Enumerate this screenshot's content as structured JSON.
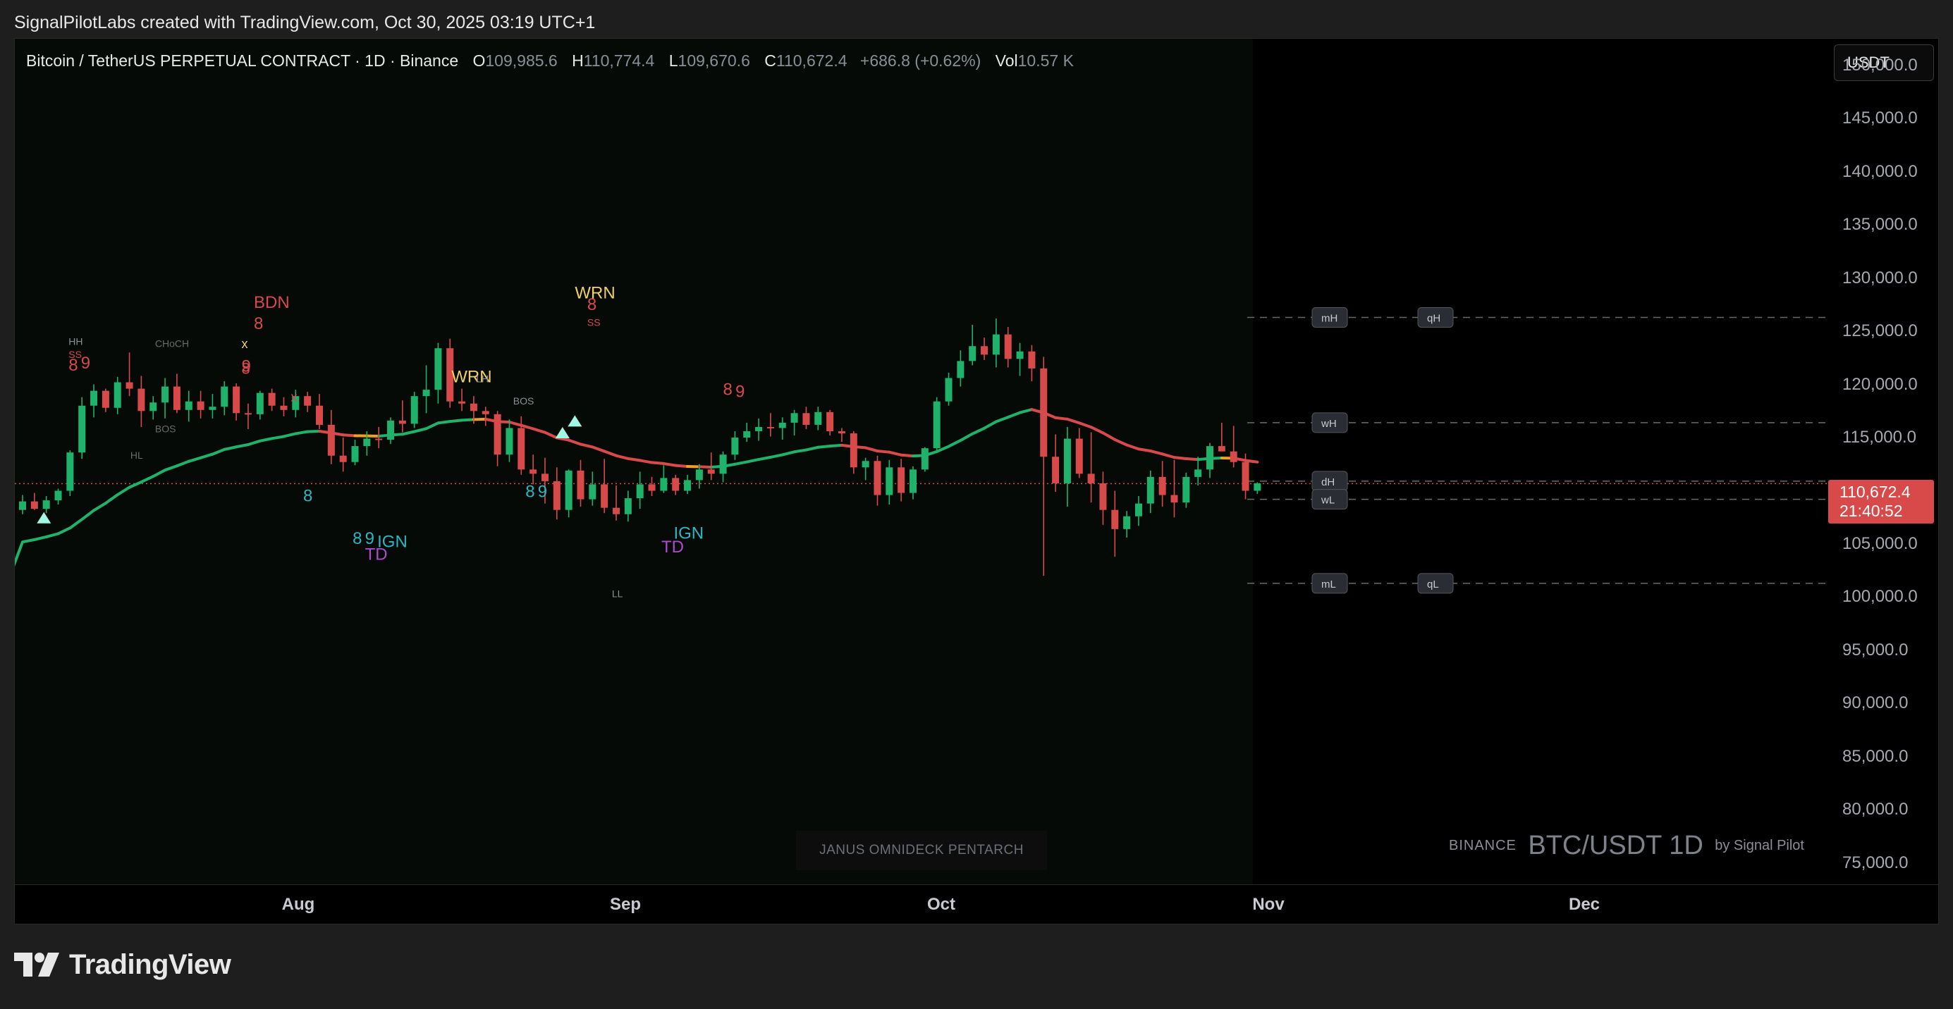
{
  "credit": "SignalPilotLabs created with TradingView.com, Oct 30, 2025 03:19 UTC+1",
  "legend": {
    "symbol": "Bitcoin / TetherUS PERPETUAL CONTRACT · 1D · Binance",
    "o_label": "O",
    "o_value": "109,985.6",
    "h_label": "H",
    "h_value": "110,774.4",
    "l_label": "L",
    "l_value": "109,670.6",
    "c_label": "C",
    "c_value": "110,672.4",
    "change": "+686.8 (+0.62%)",
    "vol_label": "Vol",
    "vol_value": "10.57 K"
  },
  "currency_button": "USDT",
  "current_price": {
    "price": "110,672.4",
    "countdown": "21:40:52",
    "color": "#d84a4a"
  },
  "watermark": {
    "exchange": "BINANCE",
    "symbol": "BTC/USDT 1D",
    "by": "by Signal Pilot"
  },
  "indicator_label": "JANUS OMNIDECK PENTARCH",
  "brand": {
    "name": "TradingView"
  },
  "icons": {
    "brand_logo": "tradingview-logo-icon"
  },
  "chart_data": {
    "type": "candlestick",
    "timeframe": "1D",
    "ylim": [
      73000,
      152500
    ],
    "y_ticks": [
      "150,000.0",
      "145,000.0",
      "140,000.0",
      "135,000.0",
      "130,000.0",
      "125,000.0",
      "120,000.0",
      "115,000.0",
      "110,000.0",
      "105,000.0",
      "100,000.0",
      "95,000.0",
      "90,000.0",
      "85,000.0",
      "80,000.0",
      "75,000.0"
    ],
    "x_ticks": [
      "Aug",
      "Sep",
      "Oct",
      "Nov",
      "Dec"
    ],
    "colors": {
      "up": "#1fb26a",
      "down": "#d84a4a",
      "ma_up": "#1fb26a",
      "ma_down": "#d84a4a",
      "ma_flat": "#f0a020"
    },
    "candles_ohlc": [
      [
        108200,
        109600,
        107800,
        109000
      ],
      [
        109000,
        109800,
        108200,
        108300
      ],
      [
        108300,
        109500,
        107900,
        109100
      ],
      [
        109100,
        110200,
        108700,
        110000
      ],
      [
        110000,
        113800,
        109500,
        113600
      ],
      [
        113600,
        118800,
        113000,
        118000
      ],
      [
        118000,
        120000,
        116900,
        119400
      ],
      [
        119400,
        119600,
        117400,
        117800
      ],
      [
        117800,
        120700,
        117200,
        120200
      ],
      [
        120200,
        123000,
        118900,
        119600
      ],
      [
        119600,
        120800,
        116000,
        117500
      ],
      [
        117500,
        118900,
        116700,
        118300
      ],
      [
        118300,
        120600,
        116800,
        119800
      ],
      [
        119800,
        121000,
        117300,
        117600
      ],
      [
        117600,
        119400,
        116500,
        118400
      ],
      [
        118400,
        119400,
        116800,
        117600
      ],
      [
        117600,
        119100,
        116800,
        117900
      ],
      [
        117900,
        120300,
        117100,
        119800
      ],
      [
        119800,
        120100,
        116600,
        117300
      ],
      [
        117300,
        118200,
        115800,
        117200
      ],
      [
        117200,
        119400,
        116700,
        119200
      ],
      [
        119200,
        119600,
        117500,
        118000
      ],
      [
        118000,
        118800,
        117000,
        117600
      ],
      [
        117600,
        119500,
        116900,
        118900
      ],
      [
        118900,
        119300,
        117400,
        118000
      ],
      [
        118000,
        119100,
        115800,
        116200
      ],
      [
        116200,
        117600,
        112500,
        113300
      ],
      [
        113300,
        115000,
        111800,
        112700
      ],
      [
        112700,
        114800,
        112400,
        114200
      ],
      [
        114200,
        115600,
        113300,
        114900
      ],
      [
        114900,
        116000,
        114000,
        114800
      ],
      [
        114800,
        116900,
        114400,
        116600
      ],
      [
        116600,
        118500,
        115500,
        116300
      ],
      [
        116300,
        119300,
        115900,
        118900
      ],
      [
        118900,
        121800,
        117300,
        119500
      ],
      [
        119500,
        123900,
        118200,
        123400
      ],
      [
        123400,
        124300,
        117800,
        118400
      ],
      [
        118400,
        119600,
        117500,
        118200
      ],
      [
        118200,
        118900,
        116300,
        117500
      ],
      [
        117500,
        117900,
        116100,
        117200
      ],
      [
        117200,
        117500,
        112300,
        113400
      ],
      [
        113400,
        116700,
        112700,
        115900
      ],
      [
        115900,
        117000,
        111500,
        112000
      ],
      [
        112000,
        113400,
        110600,
        111600
      ],
      [
        111600,
        113100,
        108800,
        110900
      ],
      [
        110900,
        112200,
        107300,
        108200
      ],
      [
        108200,
        112000,
        107500,
        111900
      ],
      [
        111900,
        112900,
        108500,
        109200
      ],
      [
        109200,
        111800,
        108600,
        110600
      ],
      [
        110600,
        113000,
        107900,
        108400
      ],
      [
        108400,
        110500,
        107200,
        107800
      ],
      [
        107800,
        110000,
        107100,
        109300
      ],
      [
        109300,
        111800,
        108300,
        110600
      ],
      [
        110600,
        111300,
        109500,
        110000
      ],
      [
        110000,
        112400,
        109800,
        111200
      ],
      [
        111200,
        111500,
        109600,
        110000
      ],
      [
        110000,
        111500,
        109700,
        111000
      ],
      [
        111000,
        112500,
        110200,
        112000
      ],
      [
        112000,
        113600,
        111000,
        111600
      ],
      [
        111600,
        113700,
        110800,
        113400
      ],
      [
        113400,
        115600,
        112900,
        115000
      ],
      [
        115000,
        116400,
        114600,
        115600
      ],
      [
        115600,
        116800,
        114700,
        116000
      ],
      [
        116000,
        117300,
        115100,
        115900
      ],
      [
        115900,
        116900,
        114800,
        116400
      ],
      [
        116400,
        117600,
        115200,
        117300
      ],
      [
        117300,
        117900,
        115800,
        116200
      ],
      [
        116200,
        117900,
        115700,
        117400
      ],
      [
        117400,
        117600,
        115200,
        115600
      ],
      [
        115600,
        115900,
        114600,
        115400
      ],
      [
        115400,
        115600,
        111600,
        112200
      ],
      [
        112200,
        113100,
        111000,
        112800
      ],
      [
        112800,
        113300,
        108600,
        109600
      ],
      [
        109600,
        112900,
        108700,
        112200
      ],
      [
        112200,
        113000,
        109000,
        109800
      ],
      [
        109800,
        112300,
        109200,
        112000
      ],
      [
        112000,
        114100,
        111800,
        114000
      ],
      [
        114000,
        118800,
        113700,
        118400
      ],
      [
        118400,
        121100,
        118000,
        120600
      ],
      [
        120600,
        123200,
        119800,
        122200
      ],
      [
        122200,
        125600,
        121800,
        123600
      ],
      [
        123600,
        124400,
        122300,
        122800
      ],
      [
        122800,
        126200,
        121600,
        124700
      ],
      [
        124700,
        125400,
        121600,
        122400
      ],
      [
        122400,
        123900,
        120800,
        123100
      ],
      [
        123100,
        123700,
        120300,
        121500
      ],
      [
        121500,
        122600,
        102000,
        113200
      ],
      [
        113200,
        115300,
        109900,
        110700
      ],
      [
        110700,
        116000,
        108500,
        114900
      ],
      [
        114900,
        115900,
        111200,
        111600
      ],
      [
        111600,
        115500,
        108900,
        110700
      ],
      [
        110700,
        111800,
        106800,
        108200
      ],
      [
        108200,
        110000,
        103800,
        106400
      ],
      [
        106400,
        108100,
        105600,
        107600
      ],
      [
        107600,
        109500,
        106700,
        108800
      ],
      [
        108800,
        111900,
        107900,
        111300
      ],
      [
        111300,
        112800,
        108500,
        109600
      ],
      [
        109600,
        112900,
        107500,
        108900
      ],
      [
        108900,
        111700,
        108400,
        111300
      ],
      [
        111300,
        113200,
        110500,
        112000
      ],
      [
        112000,
        114500,
        111200,
        114200
      ],
      [
        114200,
        116400,
        113700,
        113700
      ],
      [
        113700,
        116100,
        112200,
        112700
      ],
      [
        112700,
        113500,
        109200,
        110000
      ],
      [
        110000,
        110800,
        109700,
        110700
      ]
    ],
    "moving_average_last": 112700,
    "current_price": 110672.4,
    "levels": [
      {
        "label": "mH",
        "value": 126300
      },
      {
        "label": "qH",
        "value": 126300
      },
      {
        "label": "wH",
        "value": 116400
      },
      {
        "label": "dH",
        "value": 110900
      },
      {
        "label": "wL",
        "value": 109200
      },
      {
        "label": "mL",
        "value": 101300
      },
      {
        "label": "qL",
        "value": 101300
      }
    ],
    "annotations": [
      "HH",
      "SS",
      "8",
      "9",
      "CHoCH",
      "BOS",
      "HL",
      "BDN",
      "8",
      "9",
      "x",
      "8",
      "x",
      "8",
      "IGN",
      "TD",
      "8",
      "9",
      "WRN",
      "LH",
      "BOS",
      "8",
      "9",
      "SS",
      "WRN",
      "8",
      "LL",
      "8",
      "9",
      "IGN",
      "TD"
    ]
  }
}
